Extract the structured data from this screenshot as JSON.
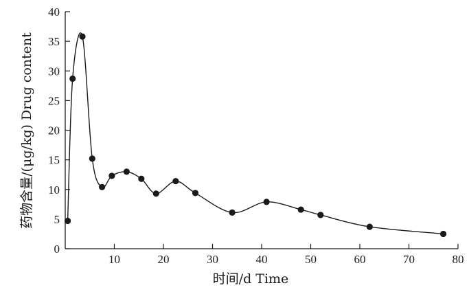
{
  "chart_data": {
    "type": "line",
    "title": "",
    "xlabel": "时间/d Time",
    "ylabel": "药物含量/(μg/kg) Drug content",
    "xlim": [
      0,
      80
    ],
    "ylim": [
      0,
      40
    ],
    "x_ticks": [
      10,
      20,
      30,
      40,
      50,
      60,
      70,
      80
    ],
    "y_ticks": [
      0,
      5,
      10,
      15,
      20,
      25,
      30,
      35,
      40
    ],
    "grid": false,
    "series": [
      {
        "x": [
          0.5,
          1.5,
          3.5,
          5.5,
          7.5,
          9.5,
          12.5,
          15.5,
          18.5,
          22.5,
          26.5,
          34,
          41,
          48,
          52,
          62,
          77
        ],
        "y": [
          4.7,
          28.7,
          35.8,
          15.2,
          10.4,
          12.3,
          13.0,
          11.8,
          9.3,
          11.4,
          9.4,
          6.1,
          7.9,
          6.6,
          5.7,
          3.7,
          2.5
        ],
        "color": "#1a1a1a",
        "marker": "circle",
        "smooth": true
      }
    ]
  }
}
